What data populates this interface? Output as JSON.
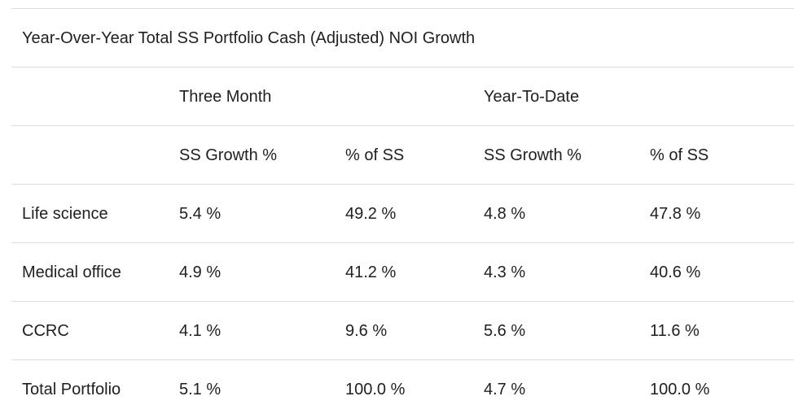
{
  "table": {
    "title": "Year-Over-Year Total SS Portfolio Cash (Adjusted) NOI Growth",
    "group_headers": {
      "corner": "",
      "three_month": "Three Month",
      "year_to_date": "Year-To-Date"
    },
    "column_headers": [
      "",
      "SS Growth %",
      "% of SS",
      "SS Growth %",
      "% of SS"
    ],
    "rows": [
      [
        "Life science",
        "5.4 %",
        "49.2 %",
        "4.8 %",
        "47.8 %"
      ],
      [
        "Medical office",
        "4.9 %",
        "41.2 %",
        "4.3 %",
        "40.6 %"
      ],
      [
        "CCRC",
        "4.1 %",
        "9.6 %",
        "5.6 %",
        "11.6 %"
      ],
      [
        "Total Portfolio",
        "5.1 %",
        "100.0 %",
        "4.7 %",
        "100.0 %"
      ]
    ]
  }
}
